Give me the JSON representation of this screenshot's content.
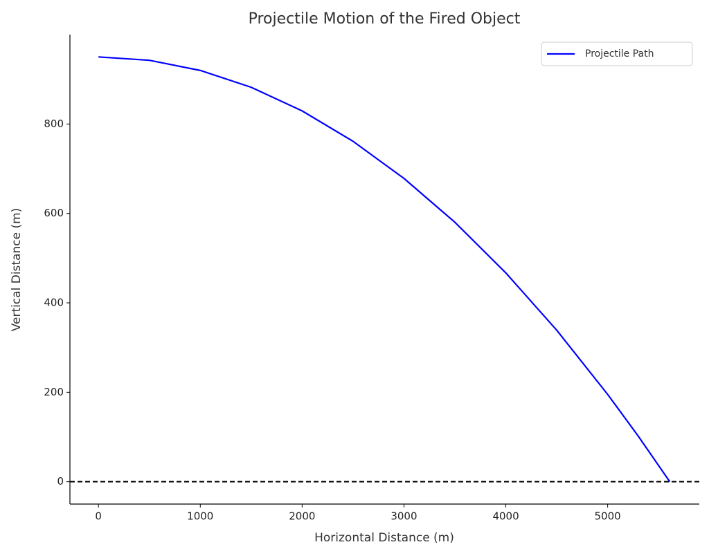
{
  "chart_data": {
    "type": "line",
    "title": "Projectile Motion of the Fired Object",
    "x_label": "Horizontal Distance (m)",
    "y_label": "Vertical Distance (m)",
    "x": [
      0,
      500,
      1000,
      1500,
      2000,
      2500,
      3000,
      3500,
      4000,
      4500,
      5000,
      5300,
      5610
    ],
    "series": [
      {
        "name": "Projectile Path",
        "color": "#0000ff",
        "values": [
          950,
          942.5,
          919.8,
          882.1,
          829.3,
          761.3,
          678.3,
          580.2,
          467.0,
          338.8,
          195.3,
          102.1,
          0
        ]
      }
    ],
    "xlim": [
      -280,
      5900
    ],
    "xticks": [
      0,
      1000,
      2000,
      3000,
      4000,
      5000
    ],
    "ylim": [
      -50,
      1000
    ],
    "yticks": [
      0,
      200,
      400,
      600,
      800
    ],
    "reference_line": {
      "y": 0,
      "color": "#000000",
      "style": "dashed"
    },
    "grid": false,
    "legend": "upper right"
  }
}
